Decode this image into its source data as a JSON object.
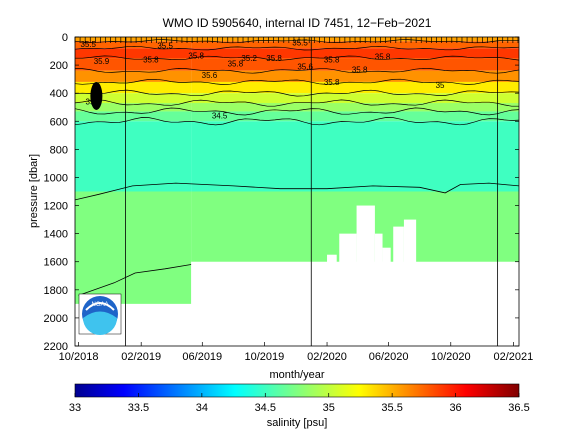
{
  "chart_data": {
    "type": "heatmap",
    "title": "WMO ID 5905640, internal ID 7451, 12−Feb−2021",
    "xlabel": "month/year",
    "ylabel": "pressure [dbar]",
    "x_range": [
      "2018-09-24",
      "2021-02-12"
    ],
    "ylim": [
      0,
      2200
    ],
    "y_reversed": true,
    "x_ticks": [
      "10/2018",
      "02/2019",
      "06/2019",
      "10/2019",
      "02/2020",
      "06/2020",
      "10/2020",
      "02/2021"
    ],
    "y_ticks": [
      "0",
      "200",
      "400",
      "600",
      "800",
      "1000",
      "1200",
      "1400",
      "1600",
      "1800",
      "2000",
      "2200"
    ],
    "colorbar": {
      "label": "salinity [psu]",
      "range": [
        33,
        36.5
      ],
      "ticks": [
        "33",
        "33.5",
        "34",
        "34.5",
        "35",
        "35.5",
        "36",
        "36.5"
      ]
    },
    "profile_depth_dbar": [
      {
        "from": "2018-09-24",
        "to": "2019-05-10",
        "max": 1900
      },
      {
        "from": "2019-05-10",
        "to": "2021-02-12",
        "max": 1600
      }
    ],
    "salinity_layers_dbar": [
      {
        "top": 0,
        "bottom": 30,
        "salinity": 35.55
      },
      {
        "top": 30,
        "bottom": 80,
        "salinity": 35.75
      },
      {
        "top": 80,
        "bottom": 150,
        "salinity": 35.9
      },
      {
        "top": 150,
        "bottom": 240,
        "salinity": 35.8
      },
      {
        "top": 240,
        "bottom": 320,
        "salinity": 35.6
      },
      {
        "top": 320,
        "bottom": 400,
        "salinity": 35.3
      },
      {
        "top": 400,
        "bottom": 470,
        "salinity": 35.05
      },
      {
        "top": 470,
        "bottom": 530,
        "salinity": 34.85
      },
      {
        "top": 530,
        "bottom": 600,
        "salinity": 34.65
      },
      {
        "top": 600,
        "bottom": 1100,
        "salinity": 34.5
      },
      {
        "top": 1100,
        "bottom": 2200,
        "salinity": 34.75
      }
    ],
    "contour_labels": [
      {
        "text": "35.5",
        "date": "2018-10-20",
        "pressure": 50
      },
      {
        "text": "35.5",
        "date": "2019-03-20",
        "pressure": 60
      },
      {
        "text": "35.5",
        "date": "2019-12-10",
        "pressure": 40
      },
      {
        "text": "35.9",
        "date": "2018-11-15",
        "pressure": 170
      },
      {
        "text": "35.8",
        "date": "2019-02-20",
        "pressure": 160
      },
      {
        "text": "35.8",
        "date": "2019-05-20",
        "pressure": 130
      },
      {
        "text": "35.8",
        "date": "2019-08-05",
        "pressure": 190
      },
      {
        "text": "35.8",
        "date": "2019-10-20",
        "pressure": 150
      },
      {
        "text": "35.8",
        "date": "2020-02-10",
        "pressure": 160
      },
      {
        "text": "35.8",
        "date": "2020-04-05",
        "pressure": 230
      },
      {
        "text": "35.8",
        "date": "2020-02-10",
        "pressure": 320
      },
      {
        "text": "35.6",
        "date": "2019-06-15",
        "pressure": 270
      },
      {
        "text": "35.6",
        "date": "2019-12-20",
        "pressure": 210
      },
      {
        "text": "35.8",
        "date": "2020-05-20",
        "pressure": 140
      },
      {
        "text": "35.2",
        "date": "2019-09-01",
        "pressure": 150
      },
      {
        "text": "35",
        "date": "2020-09-10",
        "pressure": 340
      },
      {
        "text": "35.5",
        "date": "2018-10-30",
        "pressure": 460
      },
      {
        "text": "34.5",
        "date": "2019-07-05",
        "pressure": 560
      }
    ],
    "contour_34_75_dbar": [
      {
        "date": "2018-09-24",
        "pressure": 1160
      },
      {
        "date": "2018-11-10",
        "pressure": 1120
      },
      {
        "date": "2019-01-15",
        "pressure": 1060
      },
      {
        "date": "2019-04-10",
        "pressure": 1040
      },
      {
        "date": "2019-08-01",
        "pressure": 1060
      },
      {
        "date": "2019-11-01",
        "pressure": 1080
      },
      {
        "date": "2020-02-01",
        "pressure": 1080
      },
      {
        "date": "2020-05-01",
        "pressure": 1060
      },
      {
        "date": "2020-08-01",
        "pressure": 1070
      },
      {
        "date": "2020-09-20",
        "pressure": 1110
      },
      {
        "date": "2020-10-20",
        "pressure": 1050
      },
      {
        "date": "2020-12-15",
        "pressure": 1040
      },
      {
        "date": "2021-02-12",
        "pressure": 1060
      }
    ],
    "contour_34_8_dbar": [
      {
        "date": "2018-10-01",
        "pressure": 1840
      },
      {
        "date": "2018-12-10",
        "pressure": 1750
      },
      {
        "date": "2019-01-20",
        "pressure": 1680
      },
      {
        "date": "2019-03-20",
        "pressure": 1650
      },
      {
        "date": "2019-05-10",
        "pressure": 1620
      }
    ],
    "vertical_markers": [
      "2019-01-01",
      "2020-01-01",
      "2021-01-01"
    ],
    "profile_gaps_dbar": [
      {
        "from": "2020-02-01",
        "to": "2020-02-20",
        "top": 1550
      },
      {
        "from": "2020-02-25",
        "to": "2020-03-30",
        "top": 1400
      },
      {
        "from": "2020-03-30",
        "to": "2020-05-05",
        "top": 1200
      },
      {
        "from": "2020-05-05",
        "to": "2020-05-20",
        "top": 1400
      },
      {
        "from": "2020-05-20",
        "to": "2020-06-05",
        "top": 1500
      },
      {
        "from": "2020-06-10",
        "to": "2020-07-01",
        "top": 1350
      },
      {
        "from": "2020-07-01",
        "to": "2020-07-25",
        "top": 1300
      }
    ],
    "logo_text": "NOAA",
    "grid": false,
    "legend": "none"
  }
}
